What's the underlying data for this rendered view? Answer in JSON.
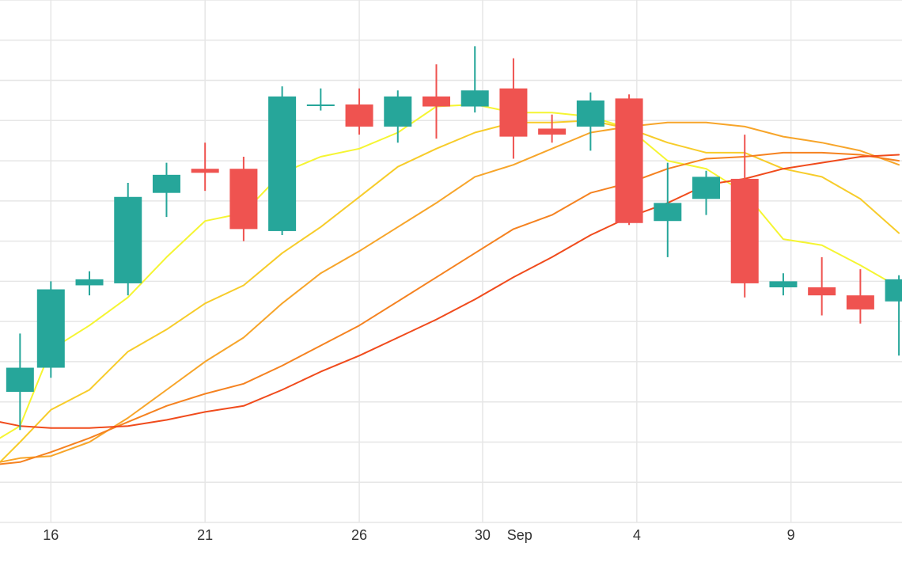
{
  "chart_data": {
    "type": "candlestick",
    "title": "",
    "xlabel": "",
    "ylabel": "",
    "grid": true,
    "x_ticks": [
      {
        "label": "16",
        "day": 16
      },
      {
        "label": "21",
        "day": 21
      },
      {
        "label": "26",
        "day": 26
      },
      {
        "label": "30",
        "day": 30
      },
      {
        "label": "Sep",
        "day": 31.2
      },
      {
        "label": "4",
        "day": 35
      },
      {
        "label": "9",
        "day": 40
      }
    ],
    "xlim": [
      14.35,
      43.6
    ],
    "ylim": [
      0,
      13
    ],
    "colors": {
      "up": "#26a69a",
      "down": "#ef5350",
      "ma": [
        "#f5f532",
        "#f7cc2a",
        "#f7a52a",
        "#f58220",
        "#f04b1c"
      ]
    },
    "candles": [
      {
        "day": 15.0,
        "open": 3.25,
        "close": 3.85,
        "high": 4.7,
        "low": 2.3
      },
      {
        "day": 16.0,
        "open": 3.85,
        "close": 5.8,
        "high": 6.0,
        "low": 3.6
      },
      {
        "day": 17.25,
        "open": 5.9,
        "close": 6.05,
        "high": 6.25,
        "low": 5.65
      },
      {
        "day": 18.5,
        "open": 5.95,
        "close": 8.1,
        "high": 8.45,
        "low": 5.65
      },
      {
        "day": 19.75,
        "open": 8.2,
        "close": 8.65,
        "high": 8.95,
        "low": 7.6
      },
      {
        "day": 21.0,
        "open": 8.8,
        "close": 8.7,
        "high": 9.45,
        "low": 8.25
      },
      {
        "day": 22.25,
        "open": 8.8,
        "close": 7.3,
        "high": 9.1,
        "low": 7.0
      },
      {
        "day": 23.5,
        "open": 7.25,
        "close": 10.6,
        "high": 10.85,
        "low": 7.15
      },
      {
        "day": 24.75,
        "open": 10.4,
        "close": 10.4,
        "high": 10.8,
        "low": 10.25
      },
      {
        "day": 26.0,
        "open": 10.4,
        "close": 9.85,
        "high": 10.8,
        "low": 9.65
      },
      {
        "day": 27.25,
        "open": 9.85,
        "close": 10.6,
        "high": 10.75,
        "low": 9.45
      },
      {
        "day": 28.5,
        "open": 10.6,
        "close": 10.35,
        "high": 11.4,
        "low": 9.55
      },
      {
        "day": 29.75,
        "open": 10.35,
        "close": 10.75,
        "high": 11.85,
        "low": 10.2
      },
      {
        "day": 31.0,
        "open": 10.8,
        "close": 9.6,
        "high": 11.55,
        "low": 9.05
      },
      {
        "day": 32.25,
        "open": 9.8,
        "close": 9.65,
        "high": 10.15,
        "low": 9.45
      },
      {
        "day": 33.5,
        "open": 9.85,
        "close": 10.5,
        "high": 10.7,
        "low": 9.25
      },
      {
        "day": 34.75,
        "open": 10.55,
        "close": 7.45,
        "high": 10.65,
        "low": 7.4
      },
      {
        "day": 36.0,
        "open": 7.5,
        "close": 7.95,
        "high": 8.95,
        "low": 6.6
      },
      {
        "day": 37.25,
        "open": 8.05,
        "close": 8.6,
        "high": 8.75,
        "low": 7.65
      },
      {
        "day": 38.5,
        "open": 8.55,
        "close": 5.95,
        "high": 9.65,
        "low": 5.6
      },
      {
        "day": 39.75,
        "open": 5.85,
        "close": 6.0,
        "high": 6.2,
        "low": 5.65
      },
      {
        "day": 41.0,
        "open": 5.85,
        "close": 5.65,
        "high": 6.6,
        "low": 5.15
      },
      {
        "day": 42.25,
        "open": 5.65,
        "close": 5.3,
        "high": 6.3,
        "low": 4.95
      },
      {
        "day": 43.5,
        "open": 5.5,
        "close": 6.05,
        "high": 6.15,
        "low": 4.15
      }
    ],
    "moving_averages": [
      {
        "points": [
          [
            14.35,
            2.1
          ],
          [
            15.0,
            2.4
          ],
          [
            16.0,
            4.3
          ],
          [
            17.25,
            4.9
          ],
          [
            18.5,
            5.6
          ],
          [
            19.75,
            6.6
          ],
          [
            21.0,
            7.5
          ],
          [
            22.25,
            7.7
          ],
          [
            23.5,
            8.7
          ],
          [
            24.75,
            9.1
          ],
          [
            26.0,
            9.3
          ],
          [
            27.25,
            9.7
          ],
          [
            28.5,
            10.35
          ],
          [
            29.75,
            10.4
          ],
          [
            31.0,
            10.2
          ],
          [
            32.25,
            10.2
          ],
          [
            33.5,
            10.1
          ],
          [
            34.75,
            9.8
          ],
          [
            36.0,
            9.0
          ],
          [
            37.25,
            8.8
          ],
          [
            38.5,
            8.2
          ],
          [
            39.75,
            7.05
          ],
          [
            41.0,
            6.9
          ],
          [
            42.25,
            6.4
          ],
          [
            43.5,
            5.85
          ]
        ]
      },
      {
        "points": [
          [
            14.35,
            1.5
          ],
          [
            15.0,
            2.0
          ],
          [
            16.0,
            2.8
          ],
          [
            17.25,
            3.3
          ],
          [
            18.5,
            4.25
          ],
          [
            19.75,
            4.8
          ],
          [
            21.0,
            5.45
          ],
          [
            22.25,
            5.9
          ],
          [
            23.5,
            6.7
          ],
          [
            24.75,
            7.35
          ],
          [
            26.0,
            8.1
          ],
          [
            27.25,
            8.85
          ],
          [
            28.5,
            9.3
          ],
          [
            29.75,
            9.7
          ],
          [
            31.0,
            9.95
          ],
          [
            32.25,
            9.95
          ],
          [
            33.5,
            10.0
          ],
          [
            34.75,
            9.8
          ],
          [
            36.0,
            9.45
          ],
          [
            37.25,
            9.2
          ],
          [
            38.5,
            9.2
          ],
          [
            39.75,
            8.8
          ],
          [
            41.0,
            8.6
          ],
          [
            42.25,
            8.05
          ],
          [
            43.5,
            7.2
          ]
        ]
      },
      {
        "points": [
          [
            14.35,
            1.5
          ],
          [
            15.0,
            1.6
          ],
          [
            16.0,
            1.65
          ],
          [
            17.25,
            2.0
          ],
          [
            18.5,
            2.6
          ],
          [
            19.75,
            3.3
          ],
          [
            21.0,
            4.0
          ],
          [
            22.25,
            4.6
          ],
          [
            23.5,
            5.45
          ],
          [
            24.75,
            6.2
          ],
          [
            26.0,
            6.75
          ],
          [
            27.25,
            7.35
          ],
          [
            28.5,
            7.95
          ],
          [
            29.75,
            8.6
          ],
          [
            31.0,
            8.9
          ],
          [
            32.25,
            9.3
          ],
          [
            33.5,
            9.7
          ],
          [
            34.75,
            9.85
          ],
          [
            36.0,
            9.95
          ],
          [
            37.25,
            9.95
          ],
          [
            38.5,
            9.85
          ],
          [
            39.75,
            9.6
          ],
          [
            41.0,
            9.45
          ],
          [
            42.25,
            9.25
          ],
          [
            43.5,
            8.9
          ]
        ]
      },
      {
        "points": [
          [
            14.35,
            1.45
          ],
          [
            15.0,
            1.5
          ],
          [
            16.0,
            1.75
          ],
          [
            17.25,
            2.1
          ],
          [
            18.5,
            2.5
          ],
          [
            19.75,
            2.9
          ],
          [
            21.0,
            3.2
          ],
          [
            22.25,
            3.45
          ],
          [
            23.5,
            3.9
          ],
          [
            24.75,
            4.4
          ],
          [
            26.0,
            4.9
          ],
          [
            27.25,
            5.5
          ],
          [
            28.5,
            6.1
          ],
          [
            29.75,
            6.7
          ],
          [
            31.0,
            7.3
          ],
          [
            32.25,
            7.65
          ],
          [
            33.5,
            8.2
          ],
          [
            34.75,
            8.45
          ],
          [
            36.0,
            8.8
          ],
          [
            37.25,
            9.05
          ],
          [
            38.5,
            9.1
          ],
          [
            39.75,
            9.2
          ],
          [
            41.0,
            9.2
          ],
          [
            42.25,
            9.15
          ],
          [
            43.5,
            9.0
          ]
        ]
      },
      {
        "points": [
          [
            14.35,
            2.5
          ],
          [
            15.0,
            2.4
          ],
          [
            16.0,
            2.35
          ],
          [
            17.25,
            2.35
          ],
          [
            18.5,
            2.4
          ],
          [
            19.75,
            2.55
          ],
          [
            21.0,
            2.75
          ],
          [
            22.25,
            2.9
          ],
          [
            23.5,
            3.3
          ],
          [
            24.75,
            3.75
          ],
          [
            26.0,
            4.15
          ],
          [
            27.25,
            4.6
          ],
          [
            28.5,
            5.05
          ],
          [
            29.75,
            5.55
          ],
          [
            31.0,
            6.1
          ],
          [
            32.25,
            6.6
          ],
          [
            33.5,
            7.15
          ],
          [
            34.75,
            7.6
          ],
          [
            36.0,
            7.95
          ],
          [
            37.25,
            8.4
          ],
          [
            38.5,
            8.55
          ],
          [
            39.75,
            8.8
          ],
          [
            41.0,
            8.95
          ],
          [
            42.25,
            9.1
          ],
          [
            43.5,
            9.15
          ]
        ]
      }
    ]
  }
}
